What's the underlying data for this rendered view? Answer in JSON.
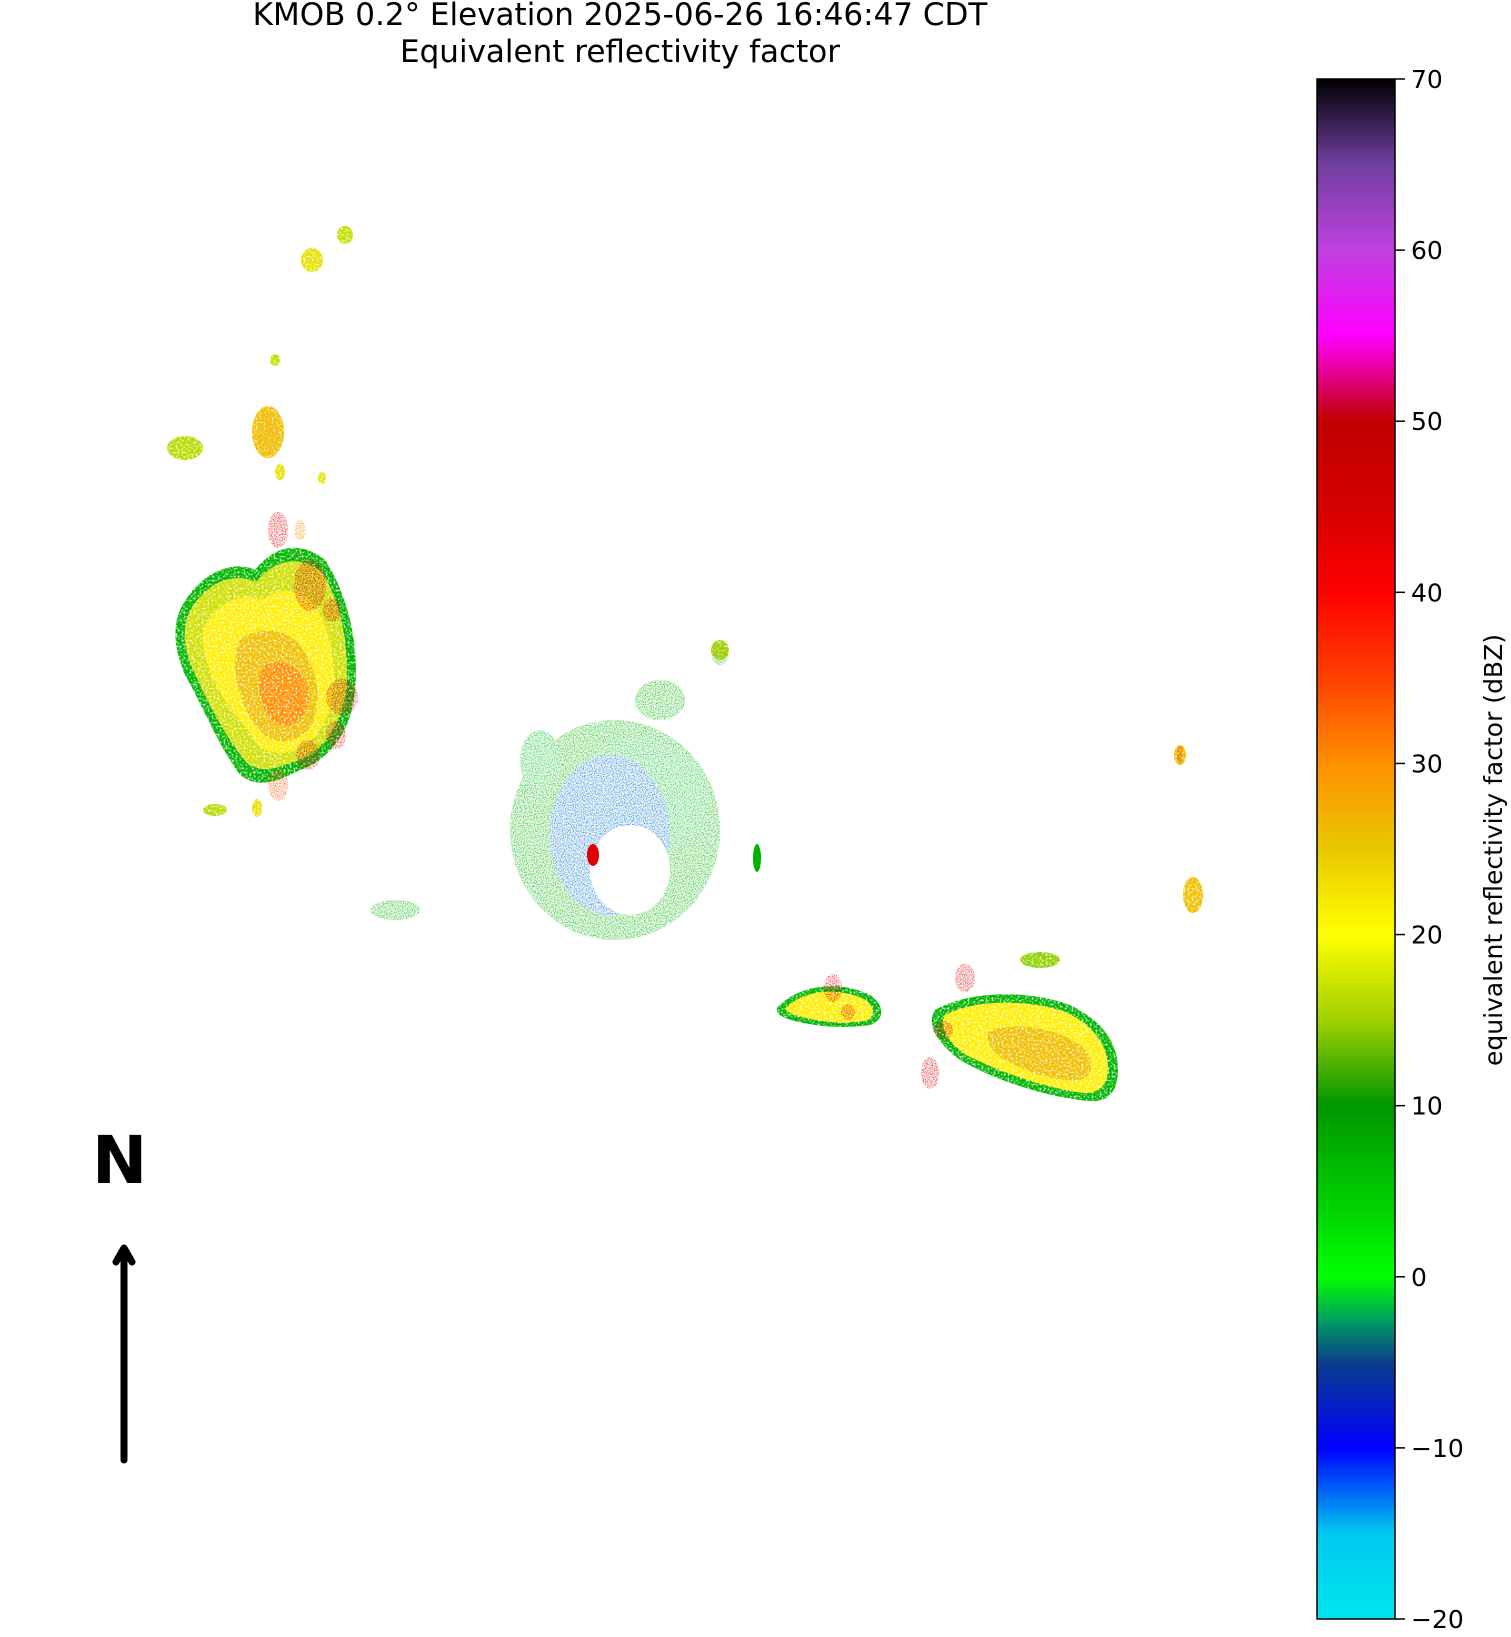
{
  "title": {
    "line1": "KMOB 0.2° Elevation   2025-06-26 16:46:47 CDT",
    "line2": "Equivalent reflectivity factor"
  },
  "north_indicator": {
    "label": "N"
  },
  "colorbar": {
    "label": "equivalent reflectivity factor (dBZ)",
    "units": "dBZ",
    "min": -20,
    "max": 70,
    "ticks": [
      "70",
      "60",
      "50",
      "40",
      "30",
      "20",
      "10",
      "0",
      "−10",
      "−20"
    ],
    "tick_values": [
      70,
      60,
      50,
      40,
      30,
      20,
      10,
      0,
      -10,
      -20
    ],
    "stops": [
      {
        "value": -20,
        "color": "#00e5ee"
      },
      {
        "value": -15,
        "color": "#00c8f0"
      },
      {
        "value": -10,
        "color": "#0000ff"
      },
      {
        "value": -5,
        "color": "#0b3e8c"
      },
      {
        "value": -2.5,
        "color": "#00a060"
      },
      {
        "value": 0,
        "color": "#00ff00"
      },
      {
        "value": 5,
        "color": "#00c800"
      },
      {
        "value": 10,
        "color": "#009600"
      },
      {
        "value": 15,
        "color": "#a0d000"
      },
      {
        "value": 20,
        "color": "#ffff00"
      },
      {
        "value": 25,
        "color": "#e8c800"
      },
      {
        "value": 30,
        "color": "#ff9000"
      },
      {
        "value": 35,
        "color": "#ff4000"
      },
      {
        "value": 40,
        "color": "#ff0000"
      },
      {
        "value": 45,
        "color": "#d40000"
      },
      {
        "value": 50,
        "color": "#c00000"
      },
      {
        "value": 55,
        "color": "#ff00ff"
      },
      {
        "value": 60,
        "color": "#c040e0"
      },
      {
        "value": 65,
        "color": "#7040a0"
      },
      {
        "value": 70,
        "color": "#000000"
      }
    ]
  },
  "colors": {
    "low_noise": "#0060ff",
    "green": "#00b400",
    "light_green": "#8cd200",
    "yellow": "#ffee00",
    "gold": "#f0c000",
    "orange": "#ff9000",
    "red": "#e00000"
  }
}
